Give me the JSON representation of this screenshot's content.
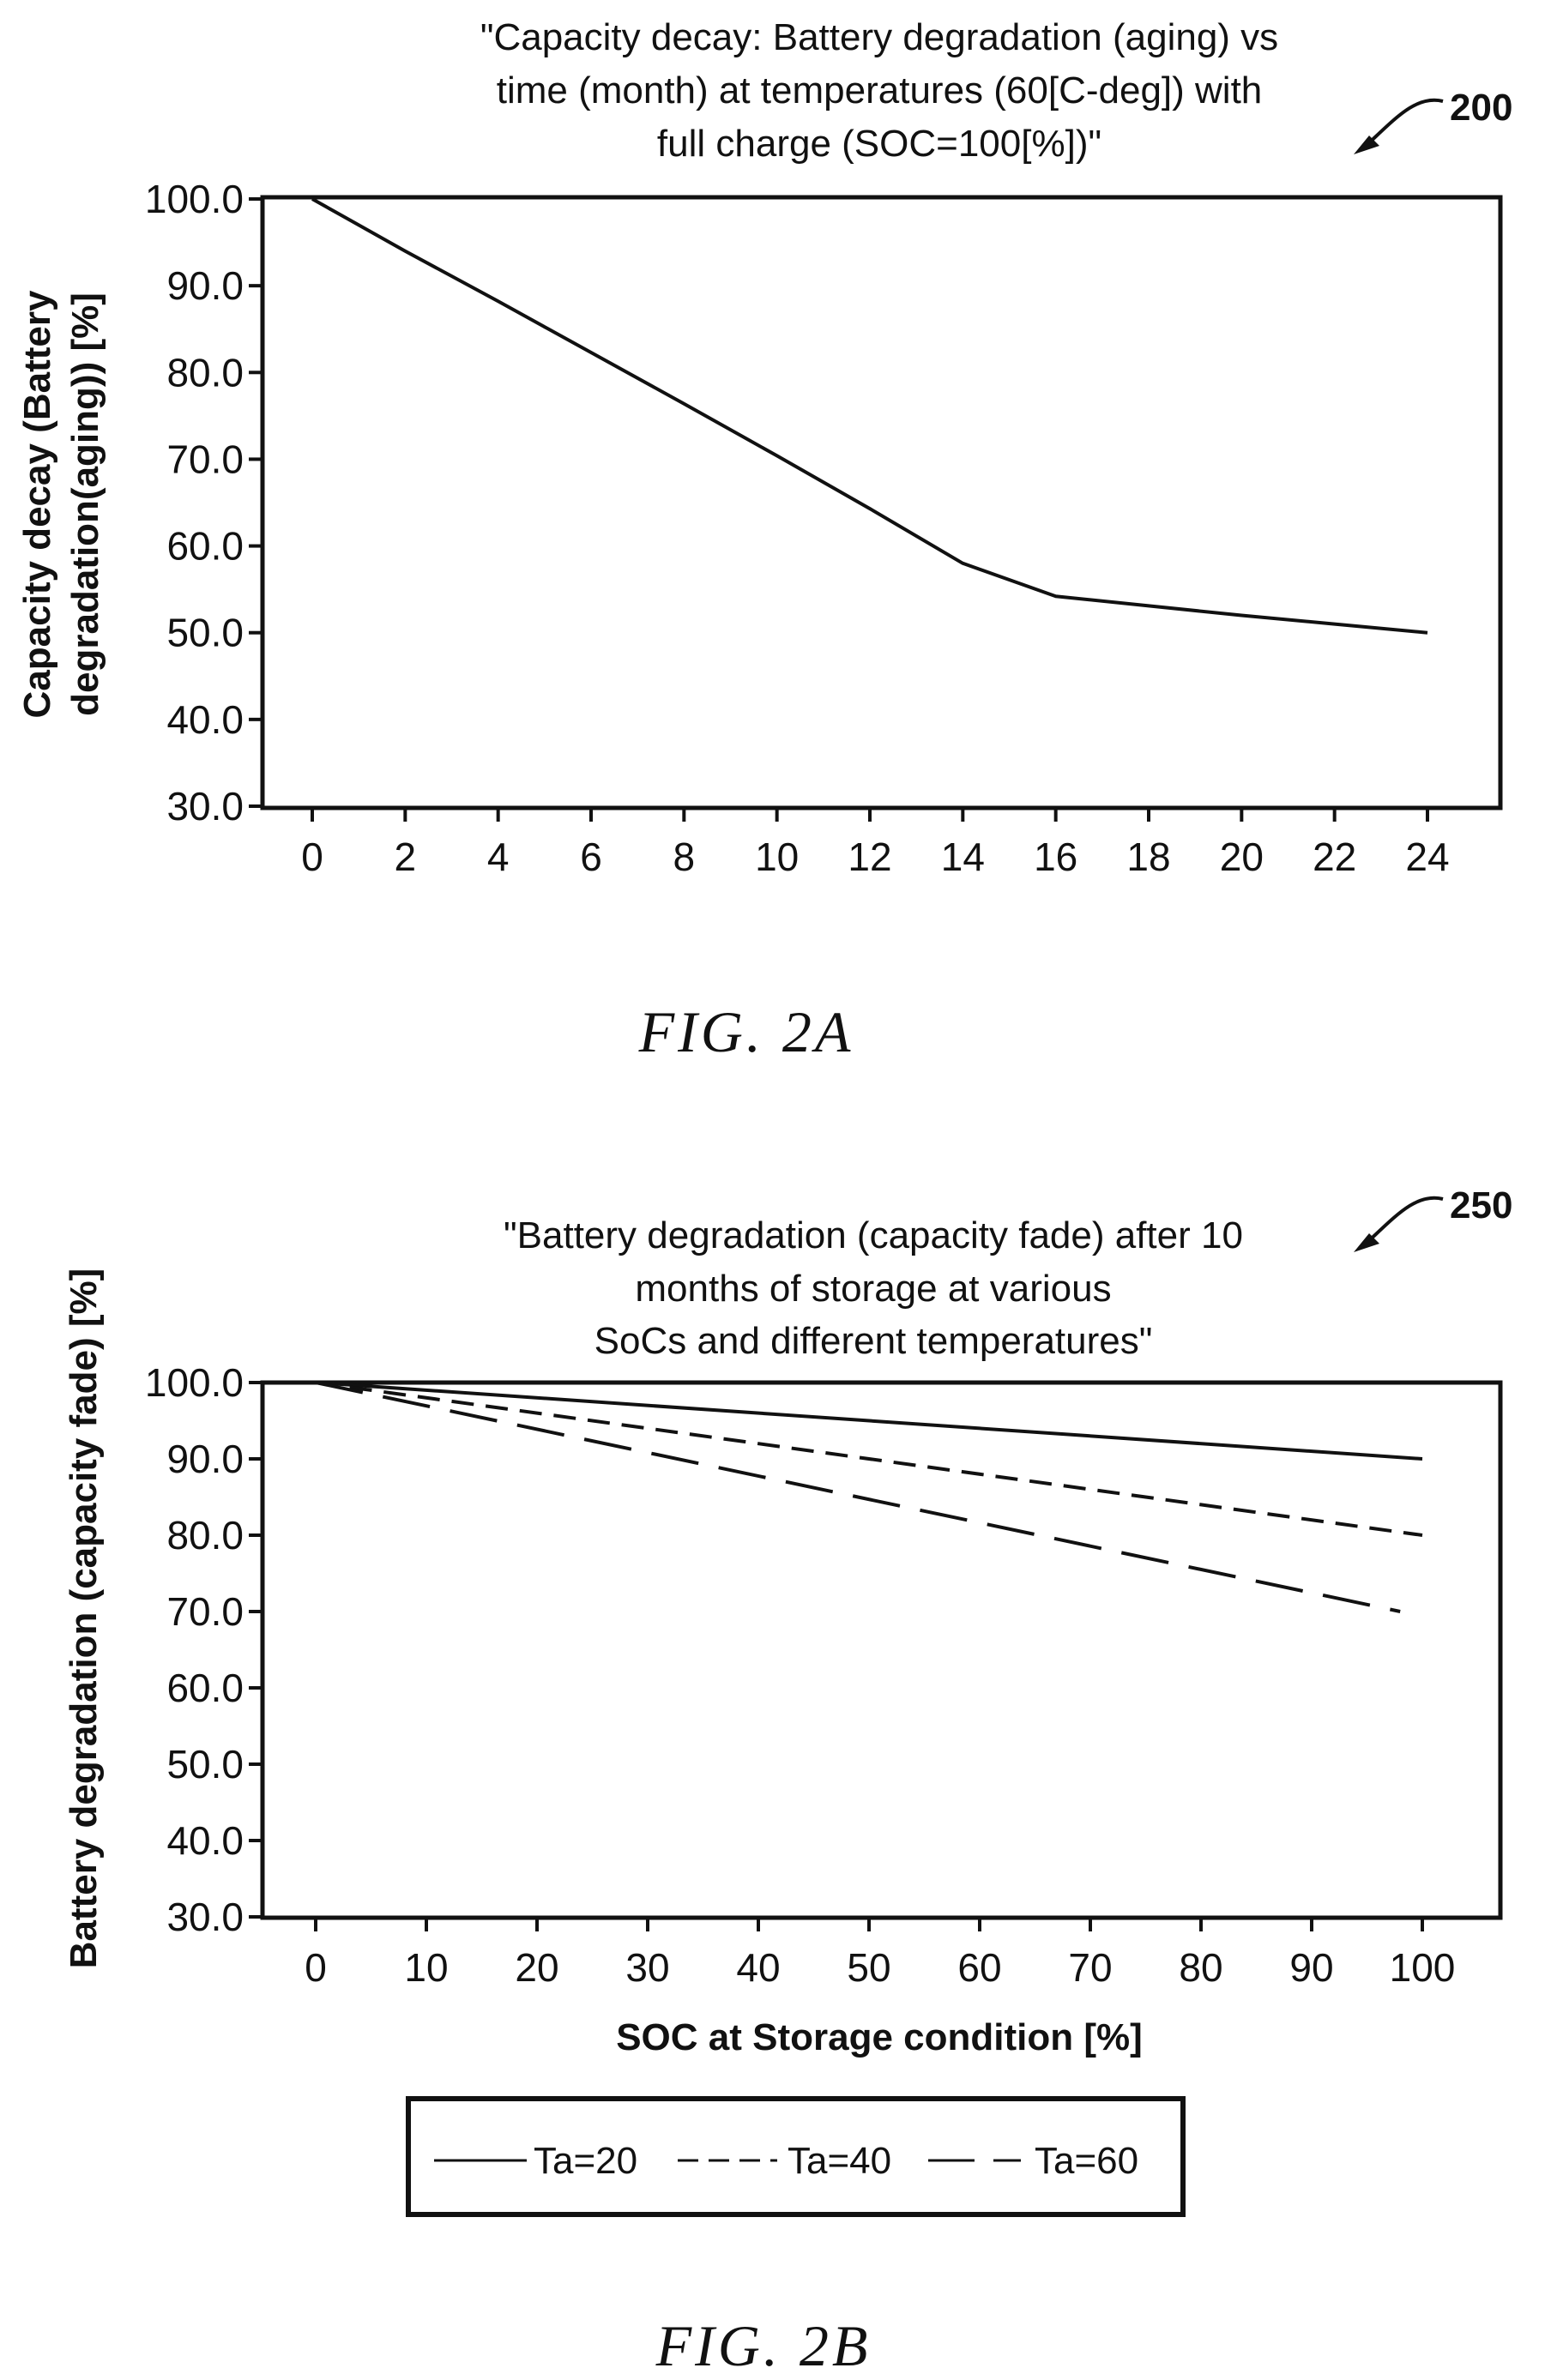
{
  "chart_data": [
    {
      "type": "line",
      "reference_numeral": "200",
      "title_lines": [
        "\"Capacity decay: Battery degradation (aging) vs",
        "time (month) at temperatures (60[C-deg]) with",
        "full charge (SOC=100[%])\""
      ],
      "ylabel_lines": [
        "Capacity decay (Battery",
        "degradation(aging)) [%]"
      ],
      "xlabel": "",
      "xlim": [
        0,
        24
      ],
      "ylim": [
        30,
        100
      ],
      "x_ticks": [
        0,
        2,
        4,
        6,
        8,
        10,
        12,
        14,
        16,
        18,
        20,
        22,
        24
      ],
      "y_ticks": [
        100,
        90,
        80,
        70,
        60,
        50,
        40,
        30
      ],
      "y_tick_labels": [
        "100.0",
        "90.0",
        "80.0",
        "70.0",
        "60.0",
        "50.0",
        "40.0",
        "30.0"
      ],
      "grid": false,
      "series": [
        {
          "style": "solid",
          "x": [
            0,
            2,
            4,
            6,
            8,
            10,
            12,
            14,
            16,
            18,
            20,
            22,
            24
          ],
          "y": [
            100,
            94,
            88.2,
            82.3,
            76.4,
            70.4,
            64.3,
            58,
            54.2,
            53.1,
            52,
            51,
            50
          ]
        }
      ],
      "caption": "FIG.   2A"
    },
    {
      "type": "line",
      "reference_numeral": "250",
      "title_lines": [
        "\"Battery degradation (capacity fade) after 10",
        "months of storage at various",
        "SoCs and different temperatures\""
      ],
      "ylabel_lines": [
        "Battery degradation (capacity fade) [%]"
      ],
      "xlabel": "SOC at Storage condition [%]",
      "xlim": [
        0,
        100
      ],
      "ylim": [
        30,
        100
      ],
      "x_ticks": [
        0,
        10,
        20,
        30,
        40,
        50,
        60,
        70,
        80,
        90,
        100
      ],
      "y_ticks": [
        100,
        90,
        80,
        70,
        60,
        50,
        40,
        30
      ],
      "y_tick_labels": [
        "100.0",
        "90.0",
        "80.0",
        "70.0",
        "60.0",
        "50.0",
        "40.0",
        "30.0"
      ],
      "grid": false,
      "legend_position": "bottom",
      "series": [
        {
          "name": "Ta=20",
          "style": "solid",
          "x": [
            0,
            100
          ],
          "y": [
            100,
            90
          ]
        },
        {
          "name": "Ta=40",
          "style": "dashed",
          "x": [
            0,
            100
          ],
          "y": [
            100,
            80
          ]
        },
        {
          "name": "Ta=60",
          "style": "long-dash",
          "x": [
            0,
            98
          ],
          "y": [
            100,
            70
          ]
        }
      ],
      "caption": "FIG.   2B"
    }
  ]
}
